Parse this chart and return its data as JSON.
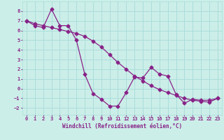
{
  "xlabel": "Windchill (Refroidissement éolien,°C)",
  "bg_color": "#cceee8",
  "grid_color": "#aaddda",
  "line_color": "#882288",
  "xlim": [
    -0.5,
    23.5
  ],
  "ylim": [
    -2.7,
    9.0
  ],
  "yticks": [
    -2,
    -1,
    0,
    1,
    2,
    3,
    4,
    5,
    6,
    7,
    8
  ],
  "xticks": [
    0,
    1,
    2,
    3,
    4,
    5,
    6,
    7,
    8,
    9,
    10,
    11,
    12,
    13,
    14,
    15,
    16,
    17,
    18,
    19,
    20,
    21,
    22,
    23
  ],
  "line1_x": [
    0,
    1,
    2,
    3,
    4,
    5,
    6,
    7,
    8,
    9,
    10,
    11,
    12,
    13,
    14,
    15,
    16,
    17,
    18,
    19,
    20,
    21,
    22,
    23
  ],
  "line1_y": [
    7.0,
    6.7,
    6.5,
    6.3,
    6.1,
    5.9,
    5.7,
    5.4,
    4.9,
    4.3,
    3.5,
    2.7,
    2.0,
    1.3,
    0.8,
    0.3,
    -0.1,
    -0.4,
    -0.7,
    -1.0,
    -1.2,
    -1.3,
    -1.4,
    -1.0
  ],
  "line2_x": [
    0,
    1,
    2,
    3,
    4,
    5,
    6,
    7,
    8,
    9,
    10,
    11,
    12,
    13,
    14,
    15,
    16,
    17,
    18,
    19,
    20,
    21,
    22,
    23
  ],
  "line2_y": [
    7.0,
    6.5,
    6.3,
    8.2,
    6.5,
    6.5,
    5.0,
    1.5,
    -0.5,
    -1.1,
    -1.8,
    -1.8,
    -0.4,
    1.2,
    1.1,
    2.2,
    1.5,
    1.3,
    -0.6,
    -1.5,
    -1.1,
    -1.2,
    -1.2,
    -1.0
  ]
}
